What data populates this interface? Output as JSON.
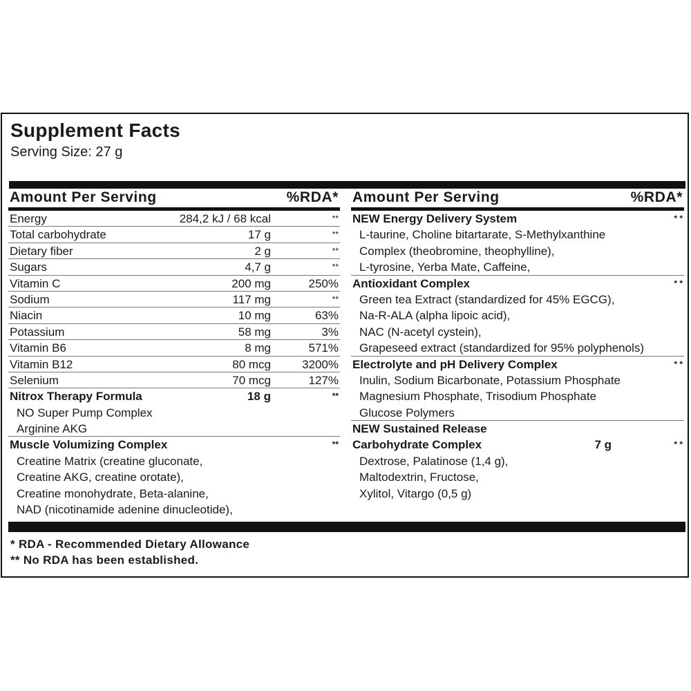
{
  "title": "Supplement Facts",
  "serving_size": "Serving Size: 27 g",
  "header": {
    "amount": "Amount Per Serving",
    "rda": "%RDA*"
  },
  "left": [
    {
      "name": "Energy",
      "amount": "284,2 kJ / 68 kcal",
      "rda": "**",
      "line": true
    },
    {
      "name": "Total carbohydrate",
      "amount": "17 g",
      "rda": "**",
      "line": true
    },
    {
      "name": "Dietary fiber",
      "amount": "2 g",
      "rda": "**",
      "line": true
    },
    {
      "name": "Sugars",
      "amount": "4,7 g",
      "rda": "**",
      "line": true
    },
    {
      "name": "Vitamin C",
      "amount": "200 mg",
      "rda": "250%",
      "line": true
    },
    {
      "name": "Sodium",
      "amount": "117 mg",
      "rda": "**",
      "line": true
    },
    {
      "name": "Niacin",
      "amount": "10 mg",
      "rda": "63%",
      "line": true
    },
    {
      "name": "Potassium",
      "amount": "58 mg",
      "rda": "3%",
      "line": true
    },
    {
      "name": "Vitamin B6",
      "amount": "8 mg",
      "rda": "571%",
      "line": true
    },
    {
      "name": "Vitamin B12",
      "amount": "80 mcg",
      "rda": "3200%",
      "line": true
    },
    {
      "name": "Selenium",
      "amount": "70 mcg",
      "rda": "127%",
      "line": true
    },
    {
      "name": "Nitrox Therapy Formula",
      "amount": "18 g",
      "rda": "**",
      "bold": true
    },
    {
      "name": "NO Super Pump Complex",
      "sub": true
    },
    {
      "name": "Arginine AKG",
      "sub": true,
      "line": true
    },
    {
      "name": "Muscle Volumizing Complex",
      "rda": "**",
      "bold": true
    },
    {
      "name": "Creatine Matrix (creatine gluconate,",
      "sub": true
    },
    {
      "name": "Creatine AKG, creatine orotate),",
      "sub": true
    },
    {
      "name": "Creatine monohydrate, Beta-alanine,",
      "sub": true
    },
    {
      "name": "NAD (nicotinamide adenine dinucleotide),",
      "sub": true
    }
  ],
  "right": [
    {
      "name": "NEW Energy Delivery System",
      "rda": "* *",
      "bold": true
    },
    {
      "name": "L-taurine, Choline bitartarate, S-Methylxanthine",
      "sub": true
    },
    {
      "name": "Complex (theobromine, theophylline),",
      "sub": true
    },
    {
      "name": "L-tyrosine, Yerba Mate, Caffeine,",
      "sub": true,
      "line": true
    },
    {
      "name": "Antioxidant Complex",
      "rda": "* *",
      "bold": true
    },
    {
      "name": "Green tea Extract (standardized for 45% EGCG),",
      "sub": true
    },
    {
      "name": "Na-R-ALA (alpha lipoic acid),",
      "sub": true
    },
    {
      "name": "NAC (N-acetyl cystein),",
      "sub": true
    },
    {
      "name": "Grapeseed extract (standardized for 95% polyphenols)",
      "sub": true,
      "line": true
    },
    {
      "name": "Electrolyte and pH Delivery Complex",
      "rda": "* *",
      "bold": true
    },
    {
      "name": "Inulin, Sodium Bicarbonate, Potassium Phosphate",
      "sub": true
    },
    {
      "name": "Magnesium Phosphate, Trisodium Phosphate",
      "sub": true
    },
    {
      "name": "Glucose Polymers",
      "sub": true,
      "line": true
    },
    {
      "name": "NEW Sustained Release",
      "bold": true
    },
    {
      "name": "Carbohydrate Complex",
      "amount": "7 g",
      "rda": "* *",
      "bold": true
    },
    {
      "name": "Dextrose, Palatinose (1,4 g),",
      "sub": true
    },
    {
      "name": "Maltodextrin, Fructose,",
      "sub": true
    },
    {
      "name": "Xylitol, Vitargo (0,5 g)",
      "sub": true
    }
  ],
  "footnotes": [
    "* RDA - Recommended Dietary Allowance",
    "** No RDA has been established."
  ]
}
